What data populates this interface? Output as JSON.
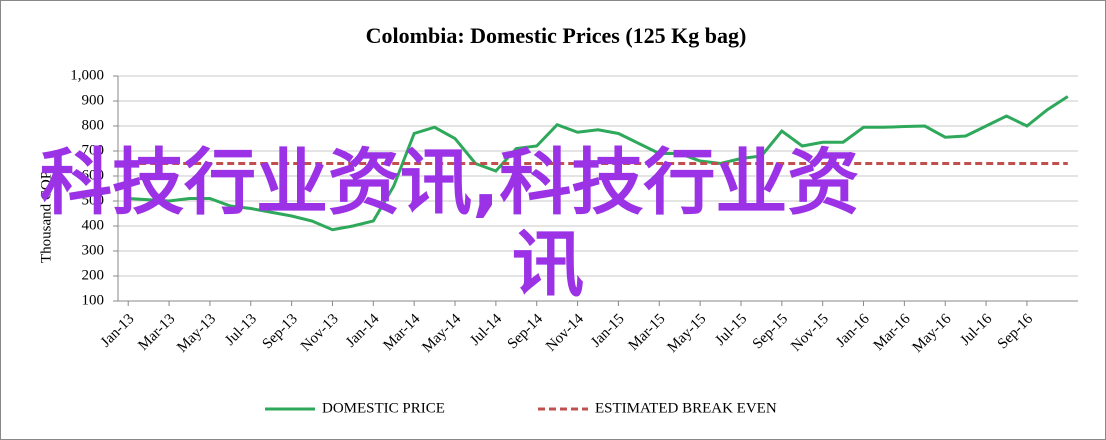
{
  "chart_data": {
    "type": "line",
    "title": "Colombia: Domestic Prices (125 Kg bag)",
    "y_label": "Thousand COP",
    "categories": [
      "Jan-13",
      null,
      "Mar-13",
      null,
      "May-13",
      null,
      "Jul-13",
      null,
      "Sep-13",
      null,
      "Nov-13",
      null,
      "Jan-14",
      null,
      "Mar-14",
      null,
      "May-14",
      null,
      "Jul-14",
      null,
      "Sep-14",
      null,
      "Nov-14",
      null,
      "Jan-15",
      null,
      "Mar-15",
      null,
      "May-15",
      null,
      "Jul-15",
      null,
      "Sep-15",
      null,
      "Nov-15",
      null,
      "Jan-16",
      null,
      "Mar-16",
      null,
      "May-16",
      null,
      "Jul-16",
      null,
      "Sep-16",
      null,
      null
    ],
    "series": [
      {
        "name": "DOMESTIC PRICE",
        "color": "#2ea85a",
        "dash": false,
        "values": [
          510,
          505,
          500,
          510,
          510,
          480,
          470,
          455,
          440,
          420,
          385,
          400,
          420,
          560,
          770,
          795,
          750,
          650,
          620,
          710,
          720,
          805,
          775,
          785,
          770,
          730,
          690,
          690,
          660,
          650,
          670,
          680,
          780,
          720,
          735,
          735,
          795,
          795,
          798,
          800,
          755,
          760,
          800,
          840,
          800,
          865,
          918
        ]
      },
      {
        "name": "ESTIMATED BREAK EVEN",
        "color": "#c0504d",
        "dash": true,
        "values": [
          650,
          650,
          650,
          650,
          650,
          650,
          650,
          650,
          650,
          650,
          650,
          650,
          650,
          650,
          650,
          650,
          650,
          650,
          650,
          650,
          650,
          650,
          650,
          650,
          650,
          650,
          650,
          650,
          650,
          650,
          650,
          650,
          650,
          650,
          650,
          650,
          650,
          650,
          650,
          650,
          650,
          650,
          650,
          650,
          650,
          650,
          650
        ]
      }
    ],
    "ylim": [
      100,
      1000
    ],
    "yticks": [
      100,
      200,
      300,
      400,
      500,
      600,
      700,
      800,
      900,
      {
        "value": 1000,
        "label": "1,000"
      }
    ],
    "grid": true,
    "legend": "bottom"
  },
  "watermark": [
    "科技行业资讯,科技行业资",
    "讯"
  ]
}
